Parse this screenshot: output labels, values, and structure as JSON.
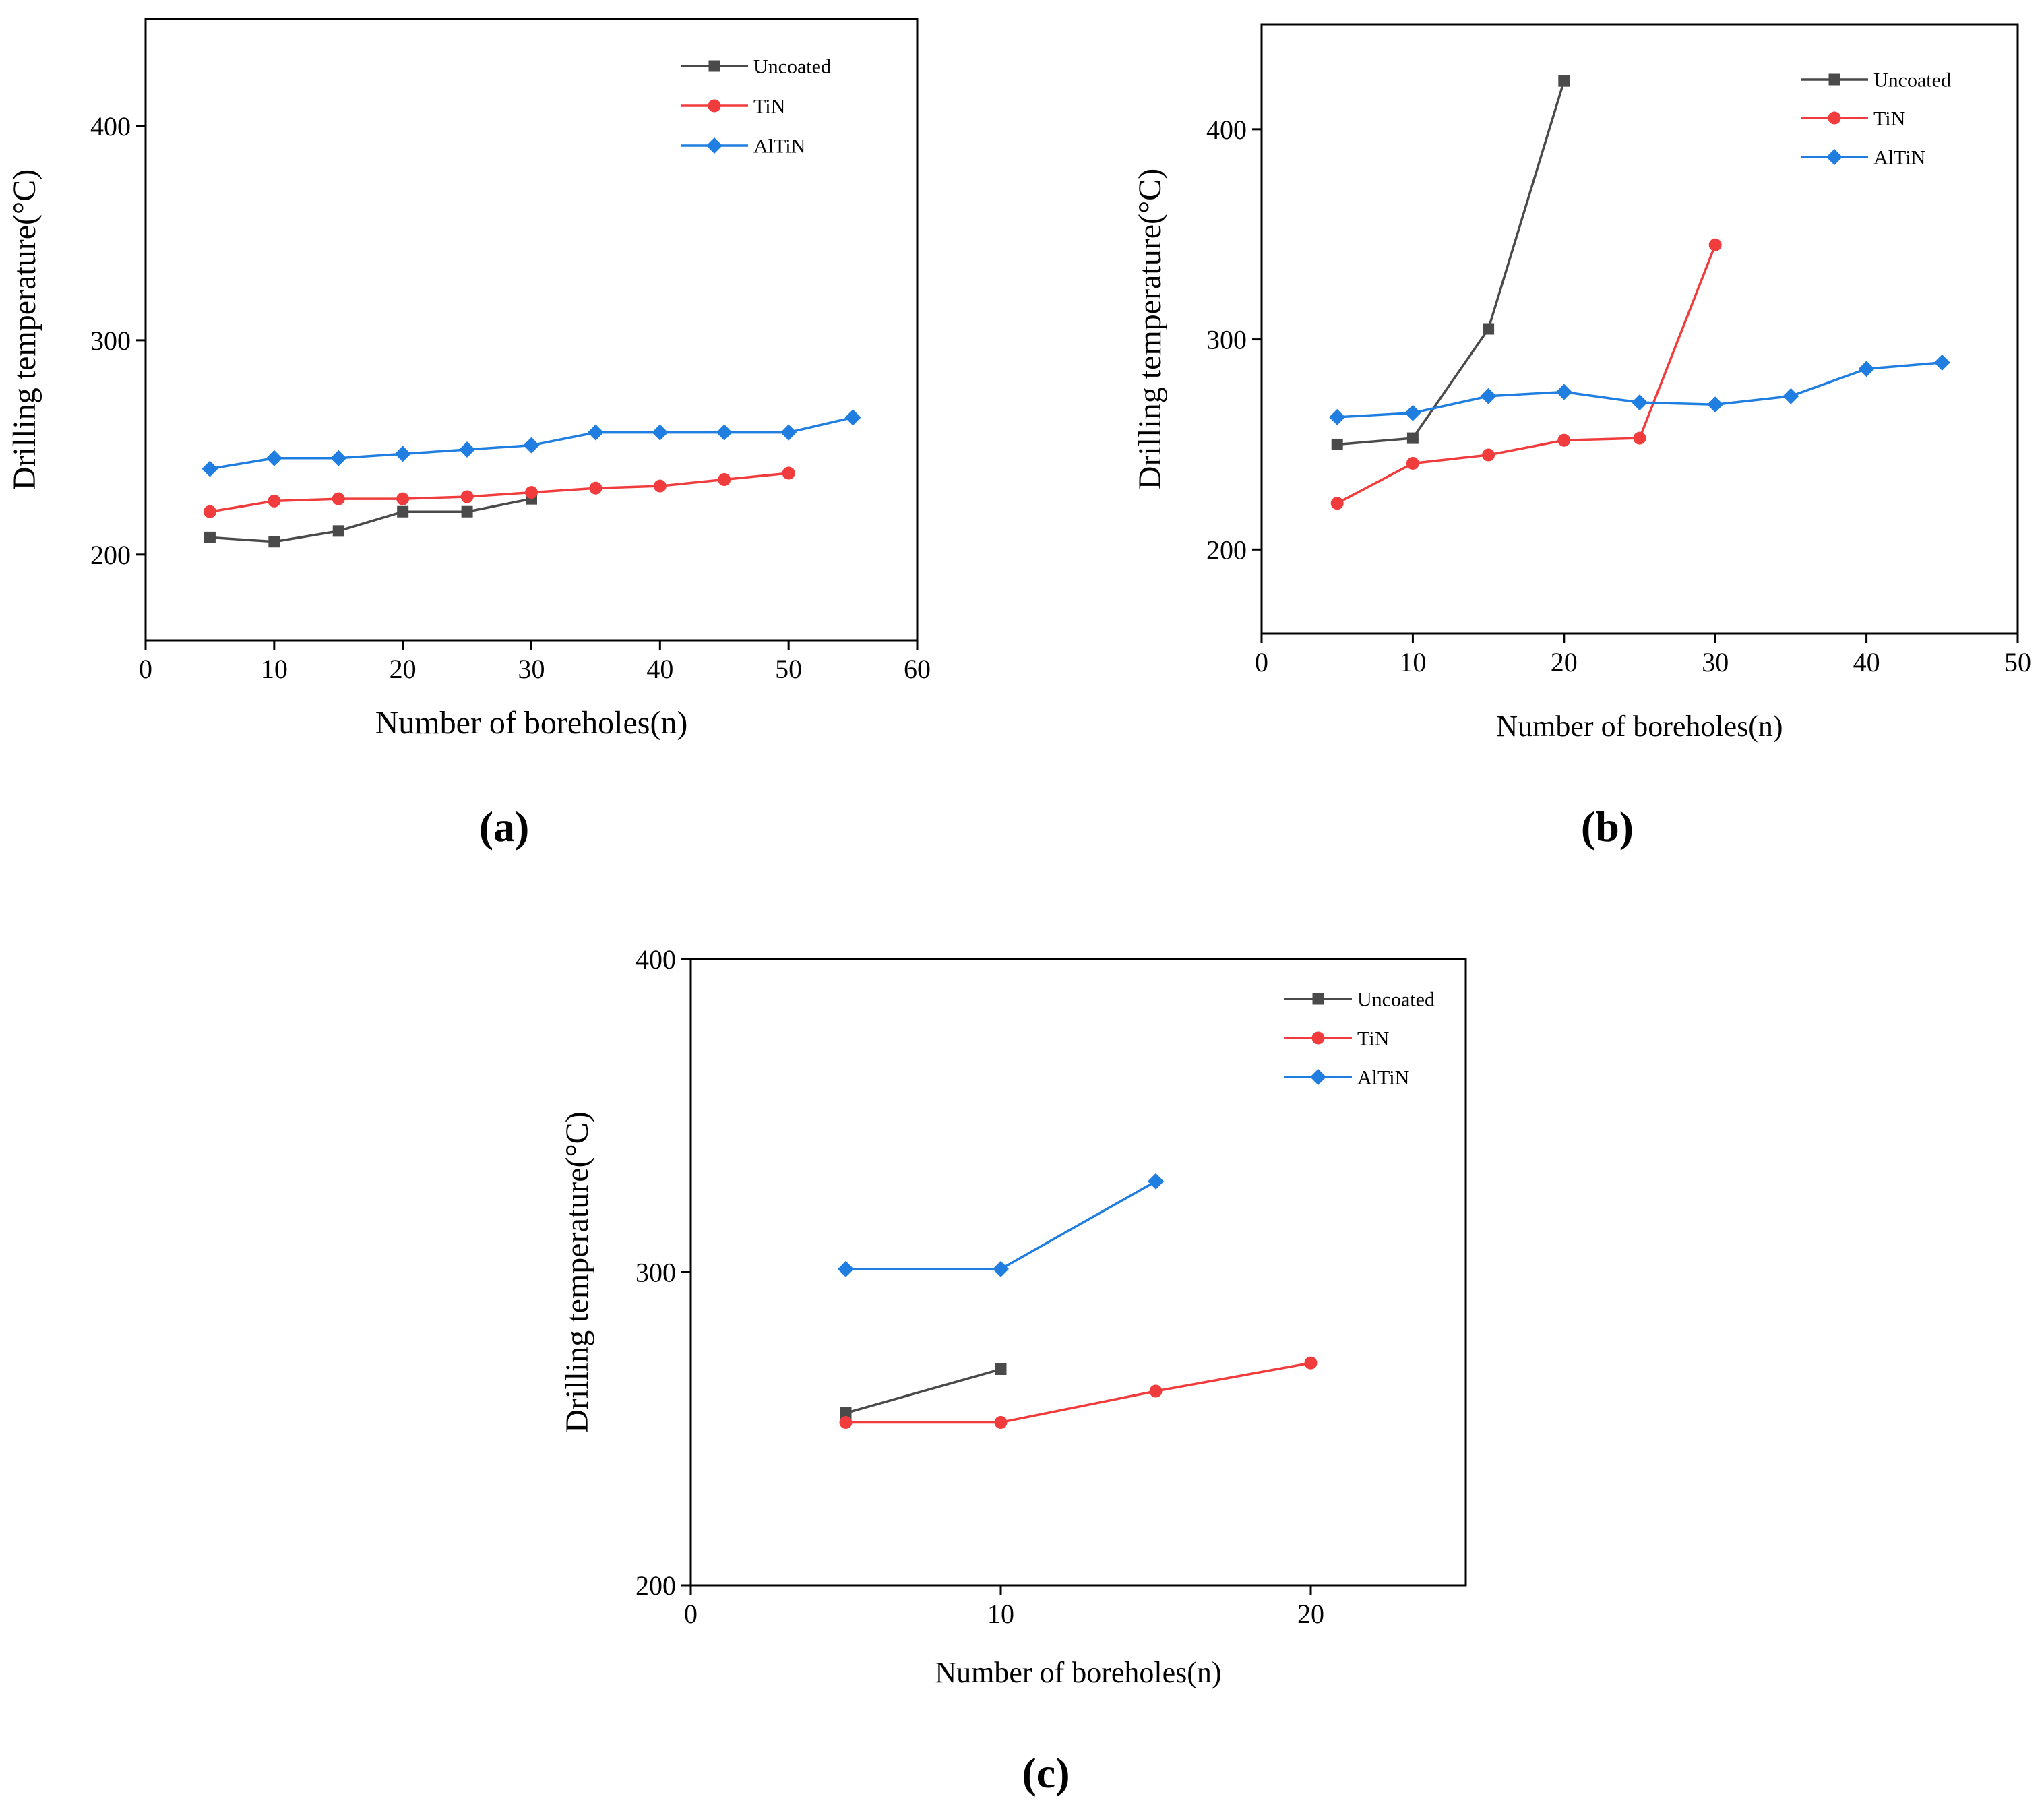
{
  "colors": {
    "uncoated": "#4a4a4a",
    "tin": "#f03c3c",
    "altin": "#1f7ee0",
    "axis": "#000000"
  },
  "chart_data": [
    {
      "type": "line",
      "panel_label": "(a)",
      "xlabel": "Number of boreholes(n)",
      "ylabel": "Drilling temperature(°C)",
      "xlim": [
        0,
        60
      ],
      "ylim": [
        160,
        450
      ],
      "xticks": [
        0,
        10,
        20,
        30,
        40,
        50,
        60
      ],
      "yticks": [
        200,
        300,
        400
      ],
      "legend": "top-right",
      "series": [
        {
          "name": "Uncoated",
          "key": "uncoated",
          "marker": "square",
          "x": [
            5,
            10,
            15,
            20,
            25,
            30
          ],
          "y": [
            208,
            206,
            211,
            220,
            220,
            226
          ]
        },
        {
          "name": "TiN",
          "key": "tin",
          "marker": "circle",
          "x": [
            5,
            10,
            15,
            20,
            25,
            30,
            35,
            40,
            45,
            50
          ],
          "y": [
            220,
            225,
            226,
            226,
            227,
            229,
            231,
            232,
            235,
            238
          ]
        },
        {
          "name": "AlTiN",
          "key": "altin",
          "marker": "diamond",
          "x": [
            5,
            10,
            15,
            20,
            25,
            30,
            35,
            40,
            45,
            50,
            55
          ],
          "y": [
            240,
            245,
            245,
            247,
            249,
            251,
            257,
            257,
            257,
            257,
            264
          ]
        }
      ]
    },
    {
      "type": "line",
      "panel_label": "(b)",
      "xlabel": "Number of boreholes(n)",
      "ylabel": "Drilling temperature(°C)",
      "xlim": [
        0,
        50
      ],
      "ylim": [
        160,
        450
      ],
      "xticks": [
        0,
        10,
        20,
        30,
        40,
        50
      ],
      "yticks": [
        200,
        300,
        400
      ],
      "legend": "top-right",
      "series": [
        {
          "name": "Uncoated",
          "key": "uncoated",
          "marker": "square",
          "x": [
            5,
            10,
            15,
            20
          ],
          "y": [
            250,
            253,
            305,
            423
          ]
        },
        {
          "name": "TiN",
          "key": "tin",
          "marker": "circle",
          "x": [
            5,
            10,
            15,
            20,
            25,
            30
          ],
          "y": [
            222,
            241,
            245,
            252,
            253,
            345
          ]
        },
        {
          "name": "AlTiN",
          "key": "altin",
          "marker": "diamond",
          "x": [
            5,
            10,
            15,
            20,
            25,
            30,
            35,
            40,
            45
          ],
          "y": [
            263,
            265,
            273,
            275,
            270,
            269,
            273,
            286,
            289
          ]
        }
      ]
    },
    {
      "type": "line",
      "panel_label": "(c)",
      "xlabel": "Number of boreholes(n)",
      "ylabel": "Drilling temperature(°C)",
      "xlim": [
        0,
        25
      ],
      "ylim": [
        200,
        400
      ],
      "xticks": [
        0,
        10,
        20
      ],
      "yticks": [
        200,
        300,
        400
      ],
      "legend": "top-right",
      "series": [
        {
          "name": "Uncoated",
          "key": "uncoated",
          "marker": "square",
          "x": [
            5,
            10
          ],
          "y": [
            255,
            269
          ]
        },
        {
          "name": "TiN",
          "key": "tin",
          "marker": "circle",
          "x": [
            5,
            10,
            15,
            20
          ],
          "y": [
            252,
            252,
            262,
            271
          ]
        },
        {
          "name": "AlTiN",
          "key": "altin",
          "marker": "diamond",
          "x": [
            5,
            10,
            15
          ],
          "y": [
            301,
            301,
            329
          ]
        }
      ]
    }
  ]
}
